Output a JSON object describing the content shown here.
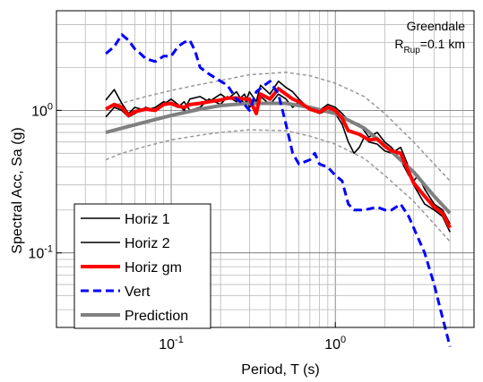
{
  "chart_data": {
    "type": "line",
    "title": "",
    "xlabel": "Period, T (s)",
    "ylabel": "Spectral Acc, Sa (g)",
    "x_scale": "log",
    "y_scale": "log",
    "xlim": [
      0.02,
      7.0
    ],
    "ylim": [
      0.03,
      5.0
    ],
    "x_ticks": [
      {
        "value": 0.1,
        "base": "10",
        "exp": "-1"
      },
      {
        "value": 1.0,
        "base": "10",
        "exp": "0"
      }
    ],
    "y_ticks": [
      {
        "value": 0.1,
        "base": "10",
        "exp": "-1"
      },
      {
        "value": 1.0,
        "base": "10",
        "exp": "0"
      }
    ],
    "grid": true,
    "legend_position": "bottom-left",
    "annotation": {
      "line1": "Greendale",
      "r_main": "R",
      "r_sub": "Rup",
      "r_value": "=0.1 km"
    },
    "colors": {
      "horiz1": "#000000",
      "horiz2": "#000000",
      "horiz_gm": "#ff0000",
      "vert": "#0000ff",
      "prediction": "#808080",
      "band": "#999999"
    },
    "series": [
      {
        "name": "Horiz 1",
        "style": "thin-solid",
        "color": "#000000",
        "points": [
          [
            0.04,
            1.18
          ],
          [
            0.045,
            1.4
          ],
          [
            0.05,
            1.12
          ],
          [
            0.055,
            0.95
          ],
          [
            0.06,
            1.05
          ],
          [
            0.07,
            1.0
          ],
          [
            0.08,
            1.05
          ],
          [
            0.09,
            1.15
          ],
          [
            0.1,
            1.1
          ],
          [
            0.11,
            1.05
          ],
          [
            0.12,
            1.15
          ],
          [
            0.13,
            1.0
          ],
          [
            0.15,
            1.05
          ],
          [
            0.17,
            1.2
          ],
          [
            0.2,
            1.1
          ],
          [
            0.22,
            1.25
          ],
          [
            0.25,
            1.15
          ],
          [
            0.28,
            1.3
          ],
          [
            0.3,
            1.05
          ],
          [
            0.35,
            1.25
          ],
          [
            0.4,
            1.1
          ],
          [
            0.45,
            1.3
          ],
          [
            0.5,
            1.2
          ],
          [
            0.55,
            1.05
          ],
          [
            0.6,
            1.15
          ],
          [
            0.7,
            1.05
          ],
          [
            0.8,
            0.95
          ],
          [
            0.9,
            1.0
          ],
          [
            1.0,
            0.95
          ],
          [
            1.1,
            0.8
          ],
          [
            1.2,
            0.6
          ],
          [
            1.3,
            0.5
          ],
          [
            1.4,
            0.55
          ],
          [
            1.5,
            0.65
          ],
          [
            1.6,
            0.6
          ],
          [
            1.8,
            0.58
          ],
          [
            2.0,
            0.52
          ],
          [
            2.2,
            0.5
          ],
          [
            2.5,
            0.55
          ],
          [
            2.8,
            0.4
          ],
          [
            3.0,
            0.3
          ],
          [
            3.5,
            0.22
          ],
          [
            4.0,
            0.2
          ],
          [
            4.5,
            0.18
          ],
          [
            5.0,
            0.14
          ]
        ]
      },
      {
        "name": "Horiz 2",
        "style": "thin-solid",
        "color": "#000000",
        "points": [
          [
            0.04,
            0.9
          ],
          [
            0.045,
            1.05
          ],
          [
            0.05,
            1.0
          ],
          [
            0.055,
            0.9
          ],
          [
            0.06,
            0.95
          ],
          [
            0.07,
            1.05
          ],
          [
            0.08,
            1.0
          ],
          [
            0.09,
            1.1
          ],
          [
            0.1,
            1.2
          ],
          [
            0.11,
            1.1
          ],
          [
            0.12,
            1.0
          ],
          [
            0.13,
            1.2
          ],
          [
            0.15,
            1.25
          ],
          [
            0.17,
            1.15
          ],
          [
            0.2,
            1.3
          ],
          [
            0.22,
            1.2
          ],
          [
            0.25,
            1.35
          ],
          [
            0.28,
            1.1
          ],
          [
            0.3,
            1.35
          ],
          [
            0.33,
            1.15
          ],
          [
            0.35,
            1.5
          ],
          [
            0.4,
            1.3
          ],
          [
            0.45,
            1.6
          ],
          [
            0.5,
            1.45
          ],
          [
            0.55,
            1.35
          ],
          [
            0.6,
            1.2
          ],
          [
            0.65,
            1.1
          ],
          [
            0.7,
            1.0
          ],
          [
            0.8,
            1.0
          ],
          [
            0.9,
            1.1
          ],
          [
            1.0,
            1.05
          ],
          [
            1.1,
            0.95
          ],
          [
            1.2,
            0.85
          ],
          [
            1.4,
            0.8
          ],
          [
            1.6,
            0.65
          ],
          [
            1.8,
            0.7
          ],
          [
            2.0,
            0.6
          ],
          [
            2.2,
            0.55
          ],
          [
            2.5,
            0.45
          ],
          [
            2.8,
            0.35
          ],
          [
            3.0,
            0.32
          ],
          [
            3.2,
            0.35
          ],
          [
            3.5,
            0.28
          ],
          [
            4.0,
            0.22
          ],
          [
            4.5,
            0.2
          ],
          [
            5.0,
            0.16
          ]
        ]
      },
      {
        "name": "Horiz gm",
        "style": "thick-solid",
        "color": "#ff0000",
        "points": [
          [
            0.04,
            1.02
          ],
          [
            0.045,
            1.1
          ],
          [
            0.05,
            1.05
          ],
          [
            0.055,
            0.92
          ],
          [
            0.06,
            0.98
          ],
          [
            0.07,
            1.02
          ],
          [
            0.08,
            1.0
          ],
          [
            0.09,
            1.1
          ],
          [
            0.1,
            1.12
          ],
          [
            0.11,
            1.07
          ],
          [
            0.12,
            1.05
          ],
          [
            0.13,
            1.1
          ],
          [
            0.15,
            1.12
          ],
          [
            0.17,
            1.15
          ],
          [
            0.2,
            1.18
          ],
          [
            0.22,
            1.22
          ],
          [
            0.25,
            1.22
          ],
          [
            0.28,
            1.2
          ],
          [
            0.3,
            1.2
          ],
          [
            0.33,
            0.95
          ],
          [
            0.35,
            1.3
          ],
          [
            0.4,
            1.2
          ],
          [
            0.45,
            1.42
          ],
          [
            0.5,
            1.3
          ],
          [
            0.55,
            1.2
          ],
          [
            0.6,
            1.15
          ],
          [
            0.7,
            1.02
          ],
          [
            0.8,
            0.97
          ],
          [
            0.9,
            1.05
          ],
          [
            1.0,
            1.0
          ],
          [
            1.1,
            0.88
          ],
          [
            1.2,
            0.72
          ],
          [
            1.4,
            0.68
          ],
          [
            1.6,
            0.62
          ],
          [
            1.8,
            0.63
          ],
          [
            2.0,
            0.56
          ],
          [
            2.2,
            0.52
          ],
          [
            2.5,
            0.5
          ],
          [
            2.8,
            0.37
          ],
          [
            3.0,
            0.31
          ],
          [
            3.5,
            0.25
          ],
          [
            4.0,
            0.21
          ],
          [
            4.5,
            0.19
          ],
          [
            5.0,
            0.15
          ]
        ]
      },
      {
        "name": "Vert",
        "style": "thick-dashed",
        "color": "#0000ff",
        "points": [
          [
            0.04,
            2.5
          ],
          [
            0.045,
            2.8
          ],
          [
            0.05,
            3.4
          ],
          [
            0.055,
            3.1
          ],
          [
            0.06,
            2.7
          ],
          [
            0.065,
            2.5
          ],
          [
            0.07,
            2.3
          ],
          [
            0.08,
            2.2
          ],
          [
            0.09,
            2.4
          ],
          [
            0.1,
            2.4
          ],
          [
            0.11,
            2.8
          ],
          [
            0.12,
            3.0
          ],
          [
            0.13,
            3.1
          ],
          [
            0.14,
            2.6
          ],
          [
            0.15,
            2.0
          ],
          [
            0.17,
            1.8
          ],
          [
            0.2,
            1.6
          ],
          [
            0.22,
            1.5
          ],
          [
            0.25,
            1.2
          ],
          [
            0.28,
            1.1
          ],
          [
            0.3,
            1.0
          ],
          [
            0.33,
            1.35
          ],
          [
            0.37,
            1.5
          ],
          [
            0.4,
            1.6
          ],
          [
            0.45,
            1.3
          ],
          [
            0.5,
            0.8
          ],
          [
            0.55,
            0.5
          ],
          [
            0.6,
            0.42
          ],
          [
            0.7,
            0.45
          ],
          [
            0.75,
            0.5
          ],
          [
            0.8,
            0.42
          ],
          [
            0.9,
            0.4
          ],
          [
            1.0,
            0.35
          ],
          [
            1.1,
            0.32
          ],
          [
            1.2,
            0.22
          ],
          [
            1.3,
            0.2
          ],
          [
            1.5,
            0.2
          ],
          [
            1.8,
            0.21
          ],
          [
            2.0,
            0.2
          ],
          [
            2.2,
            0.2
          ],
          [
            2.5,
            0.22
          ],
          [
            2.8,
            0.18
          ],
          [
            3.0,
            0.15
          ],
          [
            3.5,
            0.1
          ],
          [
            4.0,
            0.06
          ],
          [
            4.5,
            0.035
          ],
          [
            5.0,
            0.022
          ]
        ]
      },
      {
        "name": "Prediction",
        "style": "thick-solid",
        "color": "#808080",
        "points": [
          [
            0.04,
            0.7
          ],
          [
            0.05,
            0.75
          ],
          [
            0.07,
            0.83
          ],
          [
            0.1,
            0.92
          ],
          [
            0.15,
            1.02
          ],
          [
            0.2,
            1.08
          ],
          [
            0.3,
            1.12
          ],
          [
            0.5,
            1.12
          ],
          [
            0.7,
            1.05
          ],
          [
            1.0,
            0.95
          ],
          [
            1.5,
            0.75
          ],
          [
            2.0,
            0.57
          ],
          [
            3.0,
            0.37
          ],
          [
            4.0,
            0.25
          ],
          [
            5.0,
            0.19
          ]
        ]
      },
      {
        "name": "",
        "style": "thin-dashed",
        "color": "#999999",
        "points": [
          [
            0.04,
            1.05
          ],
          [
            0.05,
            1.12
          ],
          [
            0.07,
            1.25
          ],
          [
            0.1,
            1.38
          ],
          [
            0.15,
            1.52
          ],
          [
            0.2,
            1.62
          ],
          [
            0.3,
            1.78
          ],
          [
            0.5,
            1.85
          ],
          [
            0.7,
            1.75
          ],
          [
            1.0,
            1.55
          ],
          [
            1.5,
            1.25
          ],
          [
            2.0,
            0.95
          ],
          [
            3.0,
            0.6
          ],
          [
            4.0,
            0.42
          ],
          [
            5.0,
            0.32
          ]
        ]
      },
      {
        "name": "",
        "style": "thin-dashed",
        "color": "#999999",
        "points": [
          [
            0.04,
            0.45
          ],
          [
            0.05,
            0.5
          ],
          [
            0.07,
            0.56
          ],
          [
            0.1,
            0.62
          ],
          [
            0.15,
            0.67
          ],
          [
            0.2,
            0.7
          ],
          [
            0.3,
            0.73
          ],
          [
            0.5,
            0.72
          ],
          [
            0.7,
            0.66
          ],
          [
            1.0,
            0.58
          ],
          [
            1.5,
            0.46
          ],
          [
            2.0,
            0.35
          ],
          [
            3.0,
            0.23
          ],
          [
            4.0,
            0.16
          ],
          [
            5.0,
            0.12
          ]
        ]
      }
    ]
  }
}
